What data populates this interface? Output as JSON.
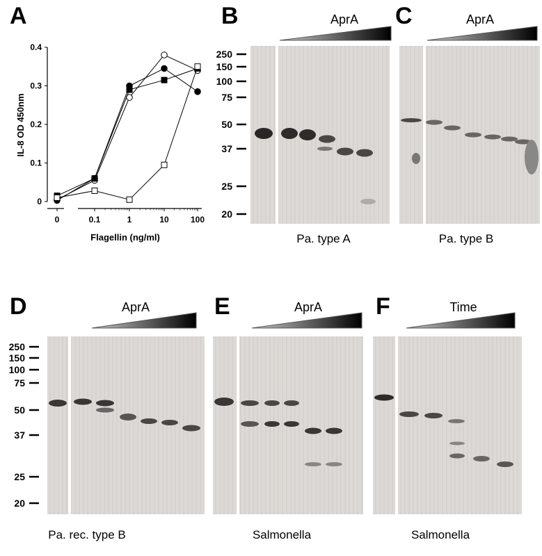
{
  "panels": {
    "A": {
      "letter": "A",
      "chart_data": {
        "type": "line",
        "ylabel": "IL-8 OD 450nm",
        "xlabel": "Flagellin (ng/ml)",
        "x_tick_labels": [
          "0",
          "0.1",
          "1",
          "10",
          "100"
        ],
        "y_tick_labels": [
          "0",
          "0.1",
          "0.2",
          "0.3",
          "0.4"
        ],
        "ylim": [
          0,
          0.4
        ],
        "x_scale": "log (with break at 0)",
        "series": [
          {
            "marker": "open-circle",
            "values": [
              0.005,
              0.055,
              0.27,
              0.38,
              0.34
            ]
          },
          {
            "marker": "filled-circle",
            "values": [
              0.003,
              0.06,
              0.3,
              0.345,
              0.285
            ]
          },
          {
            "marker": "filled-square",
            "values": [
              0.015,
              0.06,
              0.29,
              0.315,
              0.345
            ]
          },
          {
            "marker": "open-square",
            "values": [
              0.01,
              0.028,
              0.005,
              0.095,
              0.35
            ]
          }
        ]
      }
    },
    "B": {
      "letter": "B",
      "title": "AprA",
      "caption": "Pa. type A",
      "mw_labels": [
        "250",
        "150",
        "100",
        "75",
        "50",
        "37",
        "25",
        "20"
      ]
    },
    "C": {
      "letter": "C",
      "title": "AprA",
      "caption": "Pa. type B"
    },
    "D": {
      "letter": "D",
      "title": "AprA",
      "caption": "Pa. rec. type B",
      "mw_labels": [
        "250",
        "150",
        "100",
        "75",
        "50",
        "37",
        "25",
        "20"
      ]
    },
    "E": {
      "letter": "E",
      "title": "AprA",
      "caption": "Salmonella"
    },
    "F": {
      "letter": "F",
      "title": "Time",
      "caption": "Salmonella"
    }
  }
}
